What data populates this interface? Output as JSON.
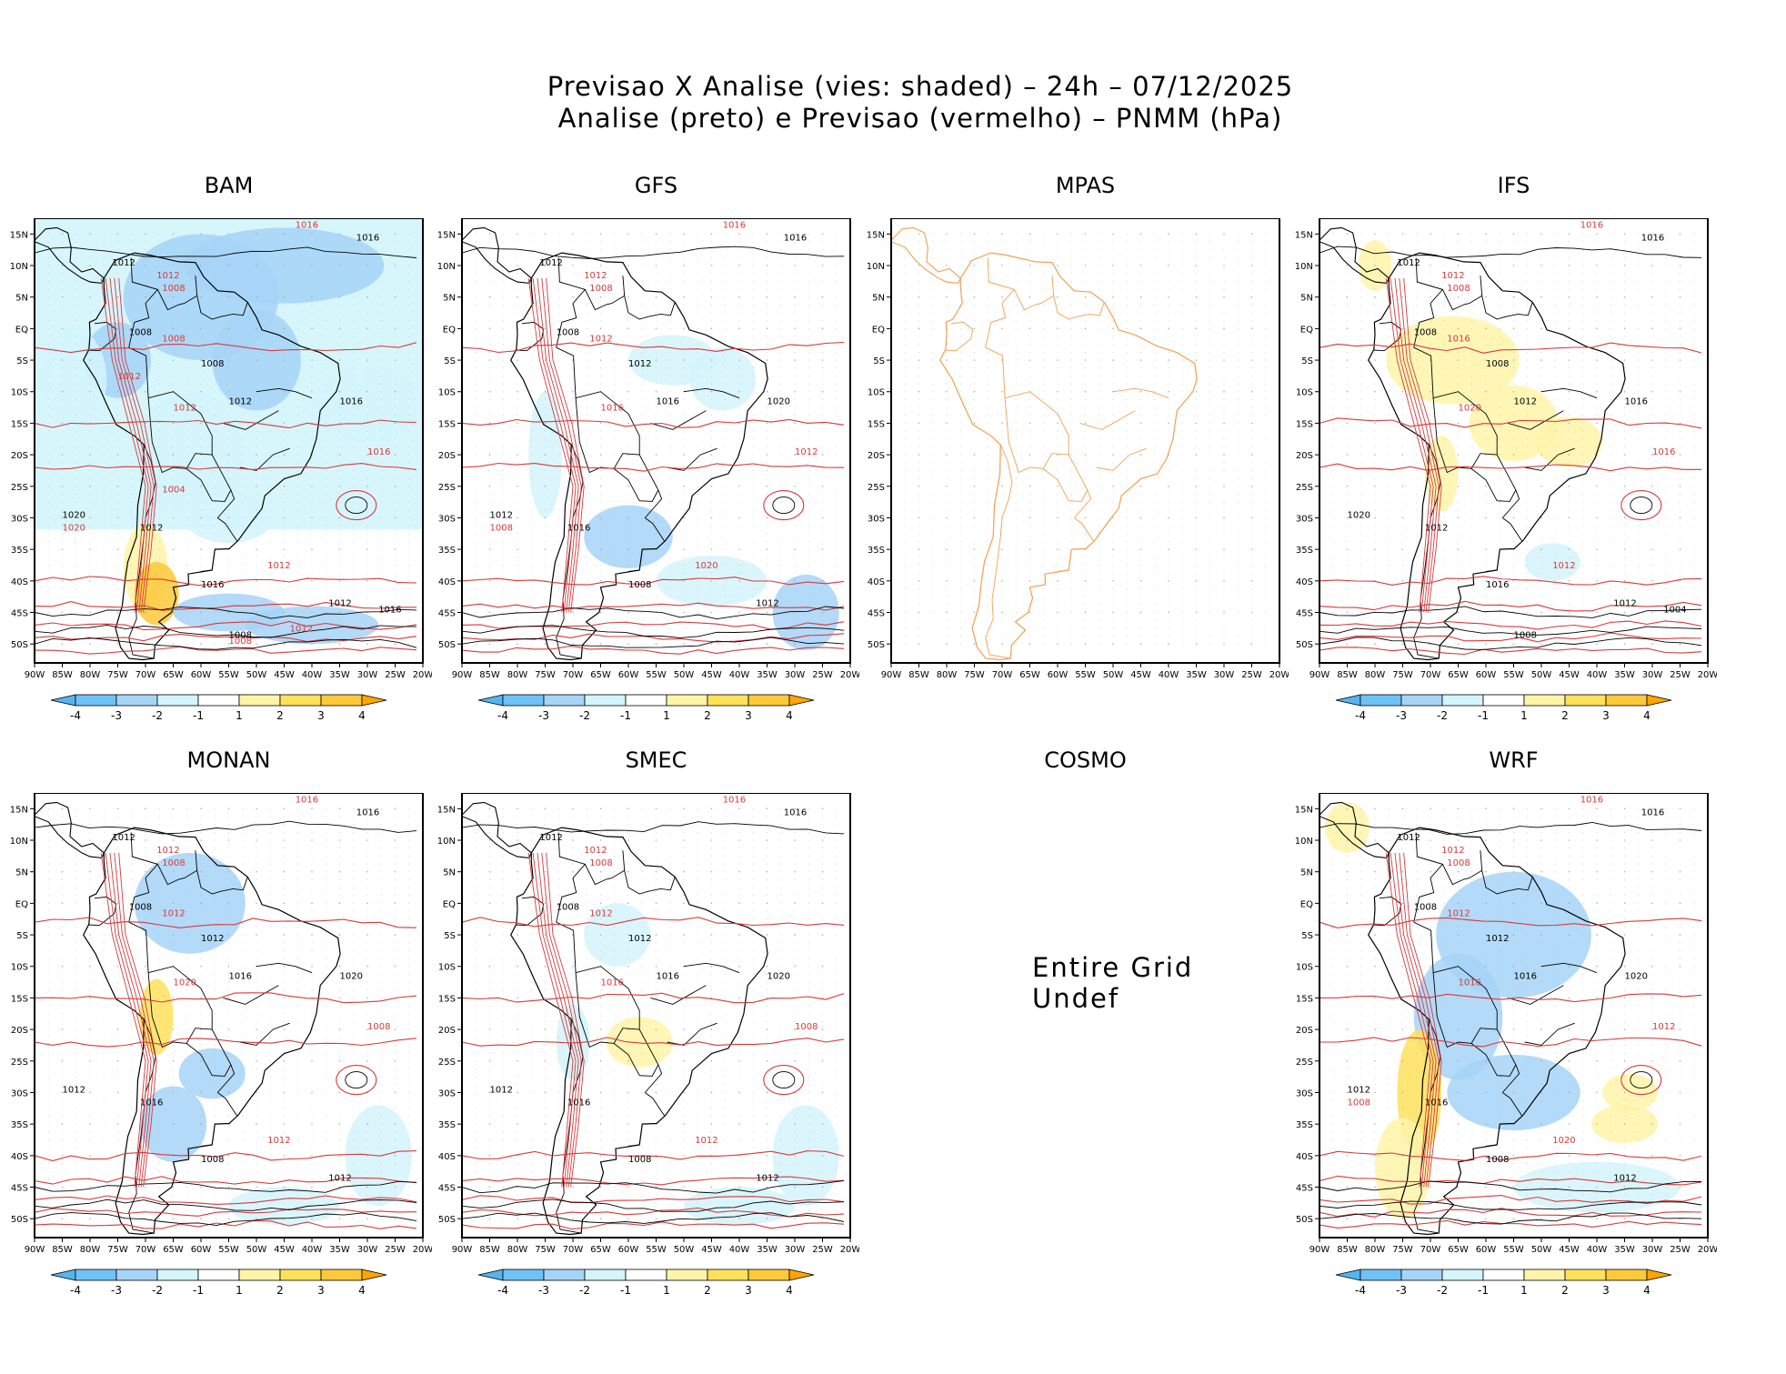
{
  "title": {
    "line1": "Previsao X Analise (vies: shaded) – 24h – 07/12/2025",
    "line2": "Analise (preto) e Previsao (vermelho) – PNMM (hPa)"
  },
  "axes": {
    "lat_labels": [
      "15N",
      "10N",
      "5N",
      "EQ",
      "5S",
      "10S",
      "15S",
      "20S",
      "25S",
      "30S",
      "35S",
      "40S",
      "45S",
      "50S"
    ],
    "lon_labels": [
      "90W",
      "85W",
      "80W",
      "75W",
      "70W",
      "65W",
      "60W",
      "55W",
      "50W",
      "45W",
      "40W",
      "35W",
      "30W",
      "25W",
      "20W"
    ]
  },
  "colorbar": {
    "labels": [
      "-4",
      "-3",
      "-2",
      "-1",
      "1",
      "2",
      "3",
      "4"
    ],
    "colors": [
      "#55b4f0",
      "#6fc2f5",
      "#a6d4f7",
      "#d3f5fb",
      "#ffffff",
      "#fff5a8",
      "#ffe15a",
      "#fcc93a",
      "#ffa500"
    ]
  },
  "colors": {
    "analysis_contour": "#000000",
    "forecast_contour": "#d8393b",
    "coast_mpas": "#f0a050"
  },
  "panels": [
    {
      "id": "bam",
      "name": "BAM",
      "status": "ok",
      "labels": {
        "black": [
          "1016",
          "1012",
          "1008",
          "1008",
          "1012",
          "1016",
          "1020",
          "1012",
          "1016",
          "1012",
          "1008",
          "1016"
        ],
        "red": [
          "1016",
          "1012",
          "1008",
          "1008",
          "1012",
          "1012",
          "1016",
          "1020",
          "1004",
          "1012",
          "1012",
          "1008"
        ]
      }
    },
    {
      "id": "gfs",
      "name": "GFS",
      "status": "ok",
      "labels": {
        "black": [
          "1016",
          "1012",
          "1008",
          "1012",
          "1016",
          "1020",
          "1012",
          "1016",
          "1008",
          "1012"
        ],
        "red": [
          "1016",
          "1012",
          "1008",
          "1012",
          "1016",
          "1020",
          "1012",
          "1008"
        ]
      }
    },
    {
      "id": "mpas",
      "name": "MPAS",
      "status": "coast_only",
      "labels": {
        "black": [],
        "red": []
      }
    },
    {
      "id": "ifs",
      "name": "IFS",
      "status": "ok",
      "labels": {
        "black": [
          "1016",
          "1012",
          "1008",
          "1008",
          "1012",
          "1016",
          "1020",
          "1012",
          "1016",
          "1012",
          "1008",
          "1004"
        ],
        "red": [
          "1016",
          "1012",
          "1008",
          "1016",
          "1020",
          "1012",
          "1016"
        ]
      }
    },
    {
      "id": "monan",
      "name": "MONAN",
      "status": "ok",
      "labels": {
        "black": [
          "1016",
          "1012",
          "1008",
          "1012",
          "1016",
          "1020",
          "1012",
          "1016",
          "1008",
          "1012"
        ],
        "red": [
          "1016",
          "1012",
          "1008",
          "1012",
          "1020",
          "1012",
          "1008"
        ]
      }
    },
    {
      "id": "smec",
      "name": "SMEC",
      "status": "ok",
      "labels": {
        "black": [
          "1016",
          "1012",
          "1008",
          "1012",
          "1016",
          "1020",
          "1012",
          "1016",
          "1008",
          "1012"
        ],
        "red": [
          "1016",
          "1012",
          "1008",
          "1012",
          "1016",
          "1012",
          "1008"
        ]
      }
    },
    {
      "id": "cosmo",
      "name": "COSMO",
      "status": "undef",
      "message": "Entire Grid Undef",
      "labels": {
        "black": [],
        "red": []
      }
    },
    {
      "id": "wrf",
      "name": "WRF",
      "status": "ok",
      "labels": {
        "black": [
          "1016",
          "1012",
          "1008",
          "1012",
          "1016",
          "1020",
          "1012",
          "1016",
          "1008",
          "1012"
        ],
        "red": [
          "1016",
          "1012",
          "1008",
          "1012",
          "1016",
          "1020",
          "1012",
          "1008"
        ]
      }
    }
  ]
}
